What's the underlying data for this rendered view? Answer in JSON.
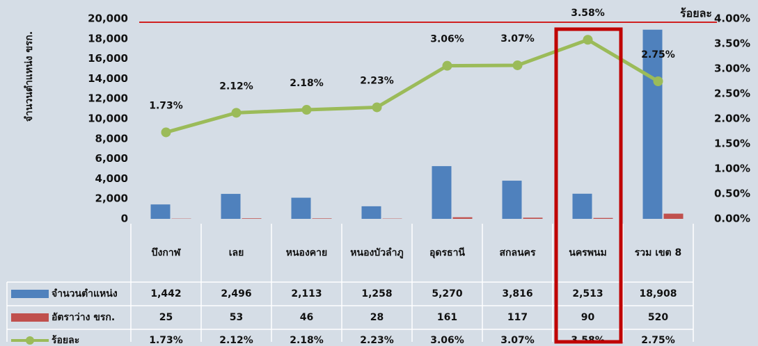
{
  "chart_data": {
    "type": "bar",
    "y_label": "จำนวนตำแหน่ง ขรก.",
    "y2_label": "ร้อยละ",
    "categories": [
      "บึงกาฬ",
      "เลย",
      "หนองคาย",
      "หนองบัวลำภู",
      "อุดรธานี",
      "สกลนคร",
      "นครพนม",
      "รวม เขต 8"
    ],
    "series": [
      {
        "name": "จำนวนตำแหน่ง",
        "type": "bar",
        "color": "#4f81bd",
        "values": [
          1442,
          2496,
          2113,
          1258,
          5270,
          3816,
          2513,
          18908
        ],
        "value_labels": [
          "1,442",
          "2,496",
          "2,113",
          "1,258",
          "5,270",
          "3,816",
          "2,513",
          "18,908"
        ]
      },
      {
        "name": "อัตราว่าง ขรก.",
        "type": "bar",
        "color": "#c0504d",
        "values": [
          25,
          53,
          46,
          28,
          161,
          117,
          90,
          520
        ]
      },
      {
        "name": "ร้อยละ",
        "type": "line",
        "axis": "y2",
        "color": "#9bbb59",
        "values": [
          1.73,
          2.12,
          2.18,
          2.23,
          3.06,
          3.07,
          3.58,
          2.75
        ],
        "value_labels": [
          "1.73%",
          "2.12%",
          "2.18%",
          "2.23%",
          "3.06%",
          "3.07%",
          "3.58%",
          "2.75%"
        ]
      }
    ],
    "ylim": [
      0,
      20000
    ],
    "yticks": [
      0,
      {
        "value": 2000,
        "label": "2,000"
      },
      {
        "value": 4000,
        "label": "4,000"
      },
      {
        "value": 6000,
        "label": "6,000"
      },
      {
        "value": 8000,
        "label": "8,000"
      },
      {
        "value": 10000,
        "label": "10,000"
      },
      {
        "value": 12000,
        "label": "12,000"
      },
      {
        "value": 14000,
        "label": "14,000"
      },
      {
        "value": 16000,
        "label": "16,000"
      },
      {
        "value": 18000,
        "label": "18,000"
      },
      {
        "value": 20000,
        "label": "20,000"
      }
    ],
    "y2lim": [
      0,
      4
    ],
    "y2ticks": [
      {
        "value": 0,
        "label": "0.00%"
      },
      {
        "value": 0.5,
        "label": "0.50%"
      },
      {
        "value": 1,
        "label": "1.00%"
      },
      {
        "value": 1.5,
        "label": "1.50%"
      },
      {
        "value": 2,
        "label": "2.00%"
      },
      {
        "value": 2.5,
        "label": "2.50%"
      },
      {
        "value": 3,
        "label": "3.00%"
      },
      {
        "value": 3.5,
        "label": "3.50%"
      },
      {
        "value": 4,
        "label": "4.00%"
      }
    ]
  }
}
